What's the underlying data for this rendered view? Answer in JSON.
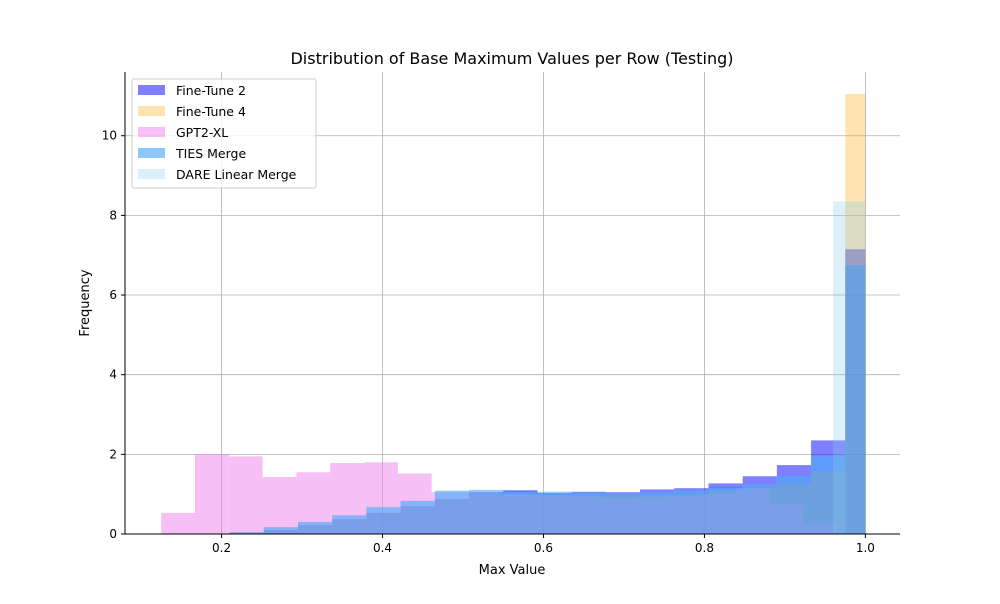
{
  "chart_data": {
    "type": "histogram",
    "title": "Distribution of Base Maximum Values per Row (Testing)",
    "xlabel": "Max Value",
    "ylabel": "Frequency",
    "xlim": [
      0.08,
      1.043
    ],
    "ylim": [
      0,
      11.6
    ],
    "xticks": [
      0.2,
      0.4,
      0.6,
      0.8,
      1.0
    ],
    "xtick_labels": [
      "0.2",
      "0.4",
      "0.6",
      "0.8",
      "1.0"
    ],
    "yticks": [
      0,
      2,
      4,
      6,
      8,
      10
    ],
    "ytick_labels": [
      "0",
      "2",
      "4",
      "6",
      "8",
      "10"
    ],
    "grid": true,
    "legend_position": "top-left",
    "series": [
      {
        "name": "Fine-Tune 2",
        "color": "#0000ff",
        "opacity": 0.5,
        "bins": [
          [
            0.21,
            0.2525,
            0.04
          ],
          [
            0.2525,
            0.295,
            0.1
          ],
          [
            0.295,
            0.3375,
            0.22
          ],
          [
            0.3375,
            0.38,
            0.37
          ],
          [
            0.38,
            0.4225,
            0.53
          ],
          [
            0.4225,
            0.465,
            0.7
          ],
          [
            0.465,
            0.5075,
            0.88
          ],
          [
            0.5075,
            0.55,
            1.05
          ],
          [
            0.55,
            0.5925,
            1.1
          ],
          [
            0.5925,
            0.635,
            1.03
          ],
          [
            0.635,
            0.6775,
            1.06
          ],
          [
            0.6775,
            0.72,
            1.05
          ],
          [
            0.72,
            0.7625,
            1.12
          ],
          [
            0.7625,
            0.805,
            1.15
          ],
          [
            0.805,
            0.8475,
            1.27
          ],
          [
            0.8475,
            0.89,
            1.45
          ],
          [
            0.89,
            0.9325,
            1.73
          ],
          [
            0.9325,
            0.975,
            2.35
          ],
          [
            0.975,
            1.0,
            7.15
          ]
        ]
      },
      {
        "name": "Fine-Tune 4",
        "color": "#ffa500",
        "opacity": 0.3,
        "bins": [
          [
            0.21,
            0.2525,
            0.04
          ],
          [
            0.2525,
            0.295,
            0.1
          ],
          [
            0.295,
            0.3375,
            0.22
          ],
          [
            0.3375,
            0.38,
            0.37
          ],
          [
            0.38,
            0.4225,
            0.53
          ],
          [
            0.4225,
            0.465,
            0.68
          ],
          [
            0.465,
            0.5075,
            0.85
          ],
          [
            0.5075,
            0.55,
            0.98
          ],
          [
            0.55,
            0.5925,
            1.0
          ],
          [
            0.5925,
            0.635,
            0.97
          ],
          [
            0.635,
            0.6775,
            0.98
          ],
          [
            0.6775,
            0.72,
            0.95
          ],
          [
            0.72,
            0.7625,
            0.98
          ],
          [
            0.7625,
            0.805,
            1.0
          ],
          [
            0.805,
            0.8475,
            1.08
          ],
          [
            0.8475,
            0.89,
            1.15
          ],
          [
            0.89,
            0.9325,
            1.25
          ],
          [
            0.9325,
            0.975,
            1.55
          ],
          [
            0.975,
            1.0,
            11.05
          ]
        ]
      },
      {
        "name": "GPT2-XL",
        "color": "#ee82ee",
        "opacity": 0.5,
        "bins": [
          [
            0.125,
            0.167,
            0.53
          ],
          [
            0.167,
            0.209,
            2.0
          ],
          [
            0.209,
            0.251,
            1.95
          ],
          [
            0.251,
            0.293,
            1.43
          ],
          [
            0.293,
            0.335,
            1.55
          ],
          [
            0.335,
            0.377,
            1.78
          ],
          [
            0.377,
            0.419,
            1.8
          ],
          [
            0.419,
            0.461,
            1.52
          ],
          [
            0.461,
            0.503,
            1.05
          ],
          [
            0.503,
            0.545,
            1.05
          ],
          [
            0.545,
            0.587,
            1.0
          ],
          [
            0.587,
            0.629,
            0.97
          ],
          [
            0.629,
            0.671,
            0.95
          ],
          [
            0.671,
            0.713,
            0.9
          ],
          [
            0.713,
            0.755,
            0.93
          ],
          [
            0.755,
            0.797,
            0.95
          ],
          [
            0.797,
            0.839,
            1.0
          ],
          [
            0.839,
            0.881,
            1.15
          ],
          [
            0.881,
            0.923,
            0.75
          ],
          [
            0.923,
            0.965,
            0.25
          ]
        ]
      },
      {
        "name": "TIES Merge",
        "color": "#1e90ff",
        "opacity": 0.5,
        "bins": [
          [
            0.21,
            0.2525,
            0.04
          ],
          [
            0.2525,
            0.295,
            0.17
          ],
          [
            0.295,
            0.3375,
            0.3
          ],
          [
            0.3375,
            0.38,
            0.47
          ],
          [
            0.38,
            0.4225,
            0.67
          ],
          [
            0.4225,
            0.465,
            0.83
          ],
          [
            0.465,
            0.5075,
            1.08
          ],
          [
            0.5075,
            0.55,
            1.1
          ],
          [
            0.55,
            0.5925,
            1.08
          ],
          [
            0.5925,
            0.635,
            1.05
          ],
          [
            0.635,
            0.6775,
            1.05
          ],
          [
            0.6775,
            0.72,
            1.0
          ],
          [
            0.72,
            0.7625,
            1.05
          ],
          [
            0.7625,
            0.805,
            1.1
          ],
          [
            0.805,
            0.8475,
            1.18
          ],
          [
            0.8475,
            0.89,
            1.25
          ],
          [
            0.89,
            0.9325,
            1.45
          ],
          [
            0.9325,
            0.975,
            1.95
          ],
          [
            0.975,
            1.0,
            6.75
          ]
        ]
      },
      {
        "name": "DARE Linear Merge",
        "color": "#87ceeb",
        "opacity": 0.3,
        "bins": [
          [
            0.21,
            0.2525,
            0.04
          ],
          [
            0.2525,
            0.295,
            0.15
          ],
          [
            0.295,
            0.3375,
            0.32
          ],
          [
            0.3375,
            0.38,
            0.47
          ],
          [
            0.38,
            0.4225,
            0.7
          ],
          [
            0.4225,
            0.465,
            0.83
          ],
          [
            0.465,
            0.5075,
            1.1
          ],
          [
            0.5075,
            0.55,
            1.12
          ],
          [
            0.55,
            0.5925,
            1.05
          ],
          [
            0.5925,
            0.635,
            1.08
          ],
          [
            0.635,
            0.6775,
            1.05
          ],
          [
            0.6775,
            0.72,
            1.02
          ],
          [
            0.72,
            0.7625,
            1.05
          ],
          [
            0.7625,
            0.805,
            1.1
          ],
          [
            0.805,
            0.8475,
            1.15
          ],
          [
            0.8475,
            0.89,
            1.25
          ],
          [
            0.89,
            0.9325,
            1.45
          ],
          [
            0.9325,
            0.975,
            1.95
          ],
          [
            0.96,
            1.0,
            8.35
          ]
        ]
      }
    ]
  }
}
